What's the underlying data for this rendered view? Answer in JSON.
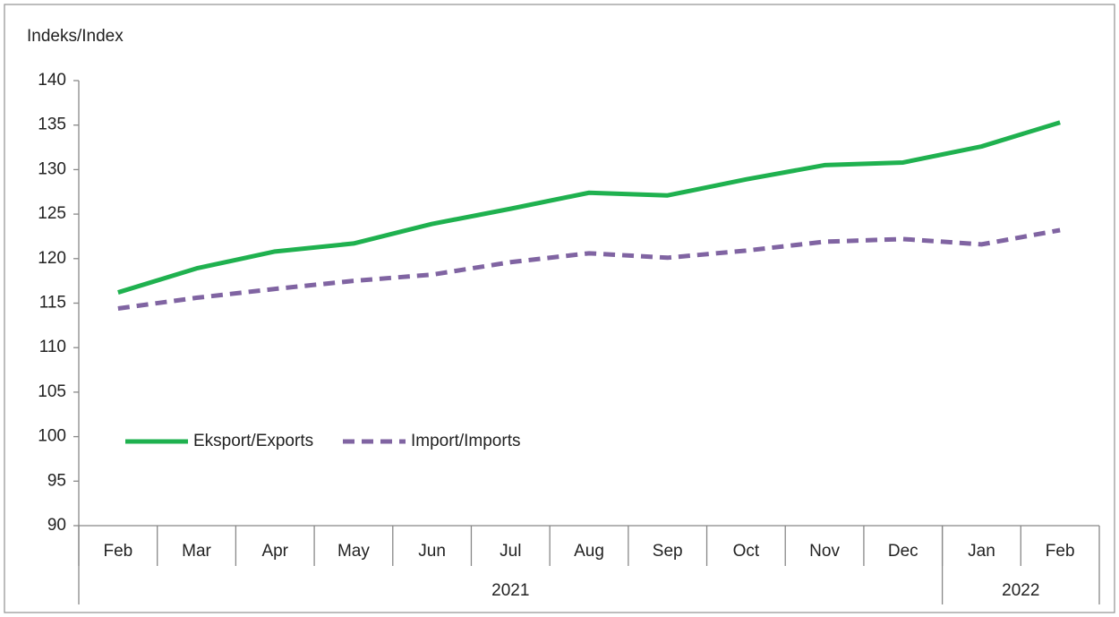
{
  "chart_data": {
    "type": "line",
    "y_axis_label": "Indeks/Index",
    "categories": [
      "Feb",
      "Mar",
      "Apr",
      "May",
      "Jun",
      "Jul",
      "Aug",
      "Sep",
      "Oct",
      "Nov",
      "Dec",
      "Jan",
      "Feb"
    ],
    "category_groups": [
      {
        "label": "2021",
        "span": 11
      },
      {
        "label": "2022",
        "span": 2
      }
    ],
    "series": [
      {
        "name": "Eksport/Exports",
        "color": "#1fb14f",
        "dash": false,
        "values": [
          116.2,
          118.9,
          120.8,
          121.7,
          123.9,
          125.6,
          127.4,
          127.1,
          128.9,
          130.5,
          130.8,
          132.6,
          135.3
        ]
      },
      {
        "name": "Import/Imports",
        "color": "#8064a2",
        "dash": true,
        "values": [
          114.4,
          115.6,
          116.6,
          117.5,
          118.2,
          119.6,
          120.6,
          120.1,
          120.9,
          121.9,
          122.2,
          121.6,
          123.2
        ]
      }
    ],
    "ylim": [
      90,
      140
    ],
    "yticks": [
      90,
      95,
      100,
      105,
      110,
      115,
      120,
      125,
      130,
      135,
      140
    ],
    "grid": false,
    "legend": "lower left"
  }
}
